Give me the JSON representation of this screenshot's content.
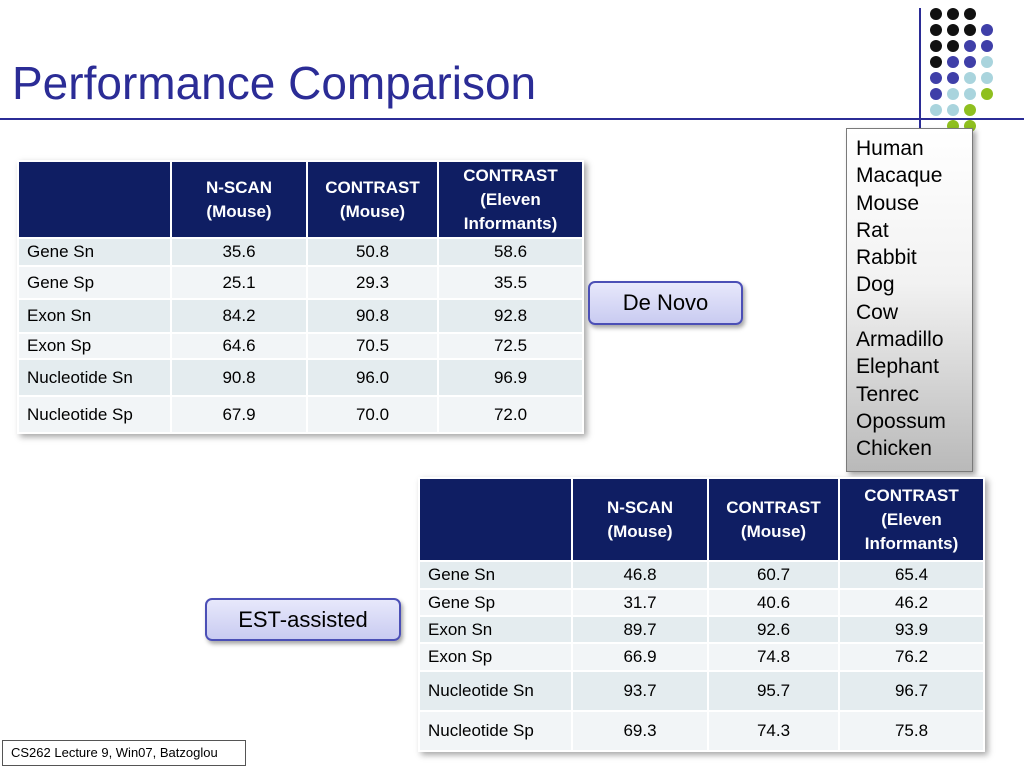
{
  "slide": {
    "title": "Performance Comparison",
    "footer": "CS262 Lecture 9, Win07, Batzoglou"
  },
  "decor": {
    "dot_colors": [
      "#111111",
      "#3f3fa8",
      "#a9d4dd",
      "#8fbf1f"
    ]
  },
  "tables": [
    {
      "label": "De Novo",
      "headers": [
        "",
        "N-SCAN\n(Mouse)",
        "CONTRAST\n(Mouse)",
        "CONTRAST\n(Eleven\nInformants)"
      ],
      "rows": [
        [
          "Gene Sn",
          "35.6",
          "50.8",
          "58.6"
        ],
        [
          "Gene Sp",
          "25.1",
          "29.3",
          "35.5"
        ],
        [
          "Exon Sn",
          "84.2",
          "90.8",
          "92.8"
        ],
        [
          "Exon Sp",
          "64.6",
          "70.5",
          "72.5"
        ],
        [
          "Nucleotide Sn",
          "90.8",
          "96.0",
          "96.9"
        ],
        [
          "Nucleotide Sp",
          "67.9",
          "70.0",
          "72.0"
        ]
      ]
    },
    {
      "label": "EST-assisted",
      "headers": [
        "",
        "N-SCAN\n(Mouse)",
        "CONTRAST\n(Mouse)",
        "CONTRAST\n(Eleven\nInformants)"
      ],
      "rows": [
        [
          "Gene Sn",
          "46.8",
          "60.7",
          "65.4"
        ],
        [
          "Gene Sp",
          "31.7",
          "40.6",
          "46.2"
        ],
        [
          "Exon Sn",
          "89.7",
          "92.6",
          "93.9"
        ],
        [
          "Exon Sp",
          "66.9",
          "74.8",
          "76.2"
        ],
        [
          "Nucleotide Sn",
          "93.7",
          "95.7",
          "96.7"
        ],
        [
          "Nucleotide Sp",
          "69.3",
          "74.3",
          "75.8"
        ]
      ]
    }
  ],
  "species": [
    "Human",
    "Macaque",
    "Mouse",
    "Rat",
    "Rabbit",
    "Dog",
    "Cow",
    "Armadillo",
    "Elephant",
    "Tenrec",
    "Opossum",
    "Chicken"
  ]
}
